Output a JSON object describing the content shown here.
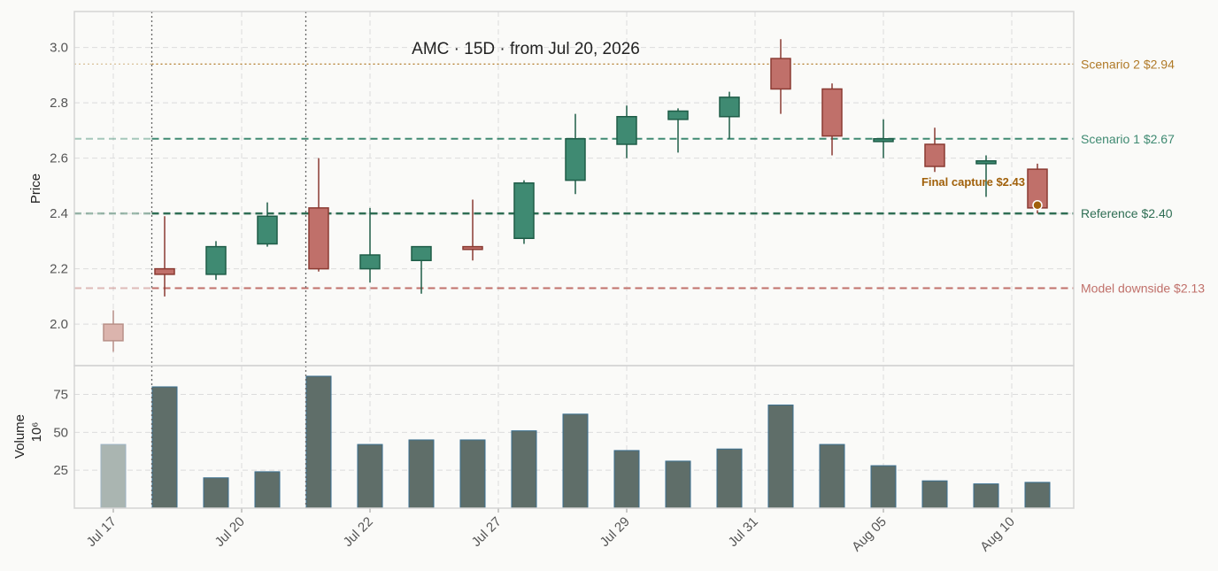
{
  "chart_data": {
    "type": "candlestick",
    "title": "AMC  ·  15D  ·  from Jul 20, 2026",
    "ylabel": "Price",
    "volume_label": "Volume",
    "volume_unit": "10⁶",
    "ylim": [
      1.85,
      3.13
    ],
    "yticks": [
      2.0,
      2.2,
      2.4,
      2.6,
      2.8,
      3.0
    ],
    "volume_ylim": [
      0,
      94
    ],
    "volume_ticks": [
      25,
      50,
      75
    ],
    "x_tick_labels": [
      {
        "index": 0,
        "label": "Jul 17"
      },
      {
        "index": 2.5,
        "label": "Jul 20"
      },
      {
        "index": 5,
        "label": "Jul 22"
      },
      {
        "index": 7.5,
        "label": "Jul 27"
      },
      {
        "index": 10,
        "label": "Jul 29"
      },
      {
        "index": 12.5,
        "label": "Jul 31"
      },
      {
        "index": 15,
        "label": "Aug 05"
      },
      {
        "index": 17.5,
        "label": "Aug 10"
      }
    ],
    "event_markers": [
      0.75,
      3.75
    ],
    "candles": [
      {
        "open": 1.94,
        "high": 2.05,
        "low": 1.9,
        "close": 2.0,
        "volume": 42,
        "faded": true
      },
      {
        "open": 2.2,
        "high": 2.39,
        "low": 2.1,
        "close": 2.18,
        "volume": 80
      },
      {
        "open": 2.18,
        "high": 2.3,
        "low": 2.16,
        "close": 2.28,
        "volume": 20
      },
      {
        "open": 2.29,
        "high": 2.44,
        "low": 2.28,
        "close": 2.39,
        "volume": 24
      },
      {
        "open": 2.42,
        "high": 2.6,
        "low": 2.19,
        "close": 2.2,
        "volume": 87
      },
      {
        "open": 2.2,
        "high": 2.42,
        "low": 2.15,
        "close": 2.25,
        "volume": 42
      },
      {
        "open": 2.23,
        "high": 2.28,
        "low": 2.11,
        "close": 2.28,
        "volume": 45
      },
      {
        "open": 2.28,
        "high": 2.45,
        "low": 2.23,
        "close": 2.27,
        "volume": 45
      },
      {
        "open": 2.31,
        "high": 2.52,
        "low": 2.29,
        "close": 2.51,
        "volume": 51
      },
      {
        "open": 2.52,
        "high": 2.76,
        "low": 2.47,
        "close": 2.67,
        "volume": 62
      },
      {
        "open": 2.65,
        "high": 2.79,
        "low": 2.6,
        "close": 2.75,
        "volume": 38
      },
      {
        "open": 2.74,
        "high": 2.78,
        "low": 2.62,
        "close": 2.77,
        "volume": 31
      },
      {
        "open": 2.75,
        "high": 2.84,
        "low": 2.67,
        "close": 2.82,
        "volume": 39
      },
      {
        "open": 2.96,
        "high": 3.03,
        "low": 2.76,
        "close": 2.85,
        "volume": 68
      },
      {
        "open": 2.85,
        "high": 2.87,
        "low": 2.61,
        "close": 2.68,
        "volume": 42
      },
      {
        "open": 2.66,
        "high": 2.74,
        "low": 2.6,
        "close": 2.67,
        "volume": 28
      },
      {
        "open": 2.65,
        "high": 2.71,
        "low": 2.55,
        "close": 2.57,
        "volume": 18
      },
      {
        "open": 2.58,
        "high": 2.61,
        "low": 2.46,
        "close": 2.59,
        "volume": 16
      },
      {
        "open": 2.56,
        "high": 2.58,
        "low": 2.4,
        "close": 2.42,
        "volume": 17
      }
    ],
    "levels": [
      {
        "label": "Scenario 2 $2.94",
        "value": 2.94,
        "color": "#b07a28",
        "style": "dotted"
      },
      {
        "label": "Scenario 1 $2.67",
        "value": 2.67,
        "color": "#3f8a72",
        "style": "dashed"
      },
      {
        "label": "Reference $2.40",
        "value": 2.4,
        "color": "#2f6e54",
        "style": "dashed-bold"
      },
      {
        "label": "Model downside $2.13",
        "value": 2.13,
        "color": "#c0706a",
        "style": "dashed"
      }
    ],
    "annotation": {
      "text": "Final capture $2.43",
      "value": 2.43,
      "index": 18,
      "color": "#a0600a"
    },
    "colors": {
      "up": "#3f8a72",
      "up_edge": "#1e5c47",
      "down": "#c0706a",
      "down_edge": "#8a3a32",
      "faded": "#dbb4ad",
      "faded_edge": "#b89088",
      "volume": "#5f6e69",
      "volume_edge": "#3a6f8f",
      "volume_faded": "#aab5b1"
    }
  }
}
